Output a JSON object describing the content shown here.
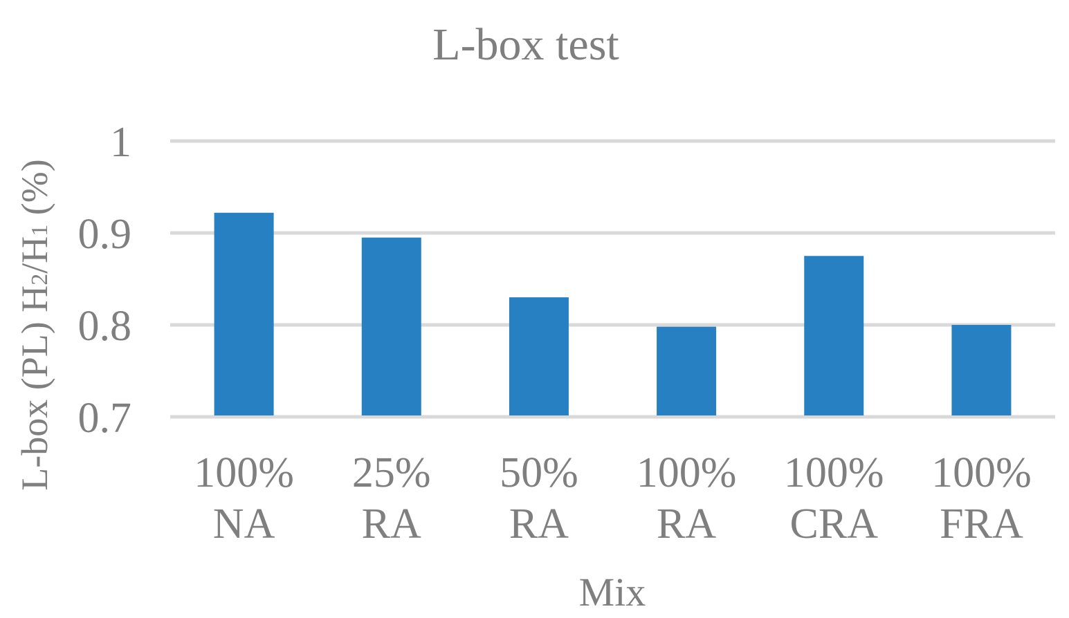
{
  "chart_data": {
    "type": "bar",
    "title": "L-box test",
    "xlabel": "Mix",
    "ylabel": "L-box (PL) H2/H1 (%)",
    "ylabel_parts": {
      "pre": "L-box (PL) H",
      "sub1": "2",
      "mid": "/H",
      "sub2": "1",
      "post": " (%)"
    },
    "categories": [
      [
        "100%",
        "NA"
      ],
      [
        "25%",
        "RA"
      ],
      [
        "50%",
        "RA"
      ],
      [
        "100%",
        "RA"
      ],
      [
        "100%",
        "CRA"
      ],
      [
        "100%",
        "FRA"
      ]
    ],
    "values": [
      0.922,
      0.895,
      0.83,
      0.798,
      0.875,
      0.8
    ],
    "ylim": [
      0.7,
      1.0
    ],
    "yticks": [
      "0.7",
      "0.8",
      "0.9",
      "1"
    ],
    "grid": true,
    "legend": "none",
    "colors": {
      "bar": "#2680c1",
      "grid": "#d9d9d9",
      "text": "#7f7f7f"
    }
  }
}
